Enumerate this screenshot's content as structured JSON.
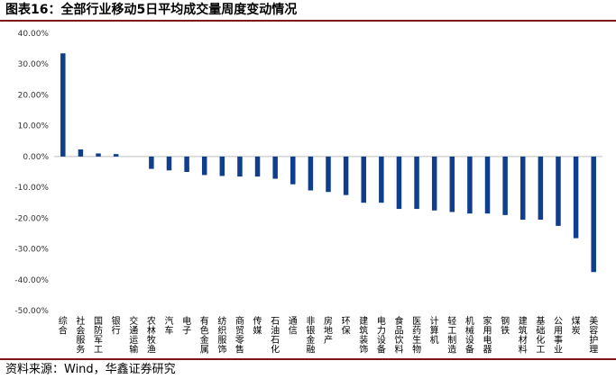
{
  "figure_title": "图表16：全部行业移动5日平均成交量周度变动情况",
  "source_note": "资料来源：Wind，华鑫证券研究",
  "colors": {
    "bar": "#0f3f8c",
    "accent_rule": "#7f1416",
    "axis": "#bfbfbf"
  },
  "chart_data": {
    "type": "bar",
    "title": "",
    "xlabel": "",
    "ylabel": "",
    "ylim": [
      -0.5,
      0.4
    ],
    "ytick_step": 0.1,
    "ytick_labels": [
      "40.00%",
      "30.00%",
      "20.00%",
      "10.00%",
      "0.00%",
      "-10.00%",
      "-20.00%",
      "-30.00%",
      "-40.00%",
      "-50.00%"
    ],
    "grid": false,
    "legend": "none",
    "categories": [
      "综合",
      "社会服务",
      "国防军工",
      "银行",
      "交通运输",
      "农林牧渔",
      "汽车",
      "电子",
      "有色金属",
      "纺织服饰",
      "商贸零售",
      "传媒",
      "石油石化",
      "通信",
      "非银金融",
      "房地产",
      "环保",
      "建筑装饰",
      "电力设备",
      "食品饮料",
      "医药生物",
      "计算机",
      "轻工制造",
      "机械设备",
      "家用电器",
      "钢铁",
      "建筑材料",
      "基础化工",
      "公用事业",
      "煤炭",
      "美容护理"
    ],
    "values": [
      0.335,
      0.023,
      0.01,
      0.008,
      0.0,
      -0.04,
      -0.045,
      -0.05,
      -0.06,
      -0.063,
      -0.065,
      -0.065,
      -0.072,
      -0.09,
      -0.11,
      -0.115,
      -0.125,
      -0.15,
      -0.15,
      -0.17,
      -0.17,
      -0.175,
      -0.18,
      -0.185,
      -0.185,
      -0.19,
      -0.205,
      -0.205,
      -0.225,
      -0.265,
      -0.375
    ]
  }
}
